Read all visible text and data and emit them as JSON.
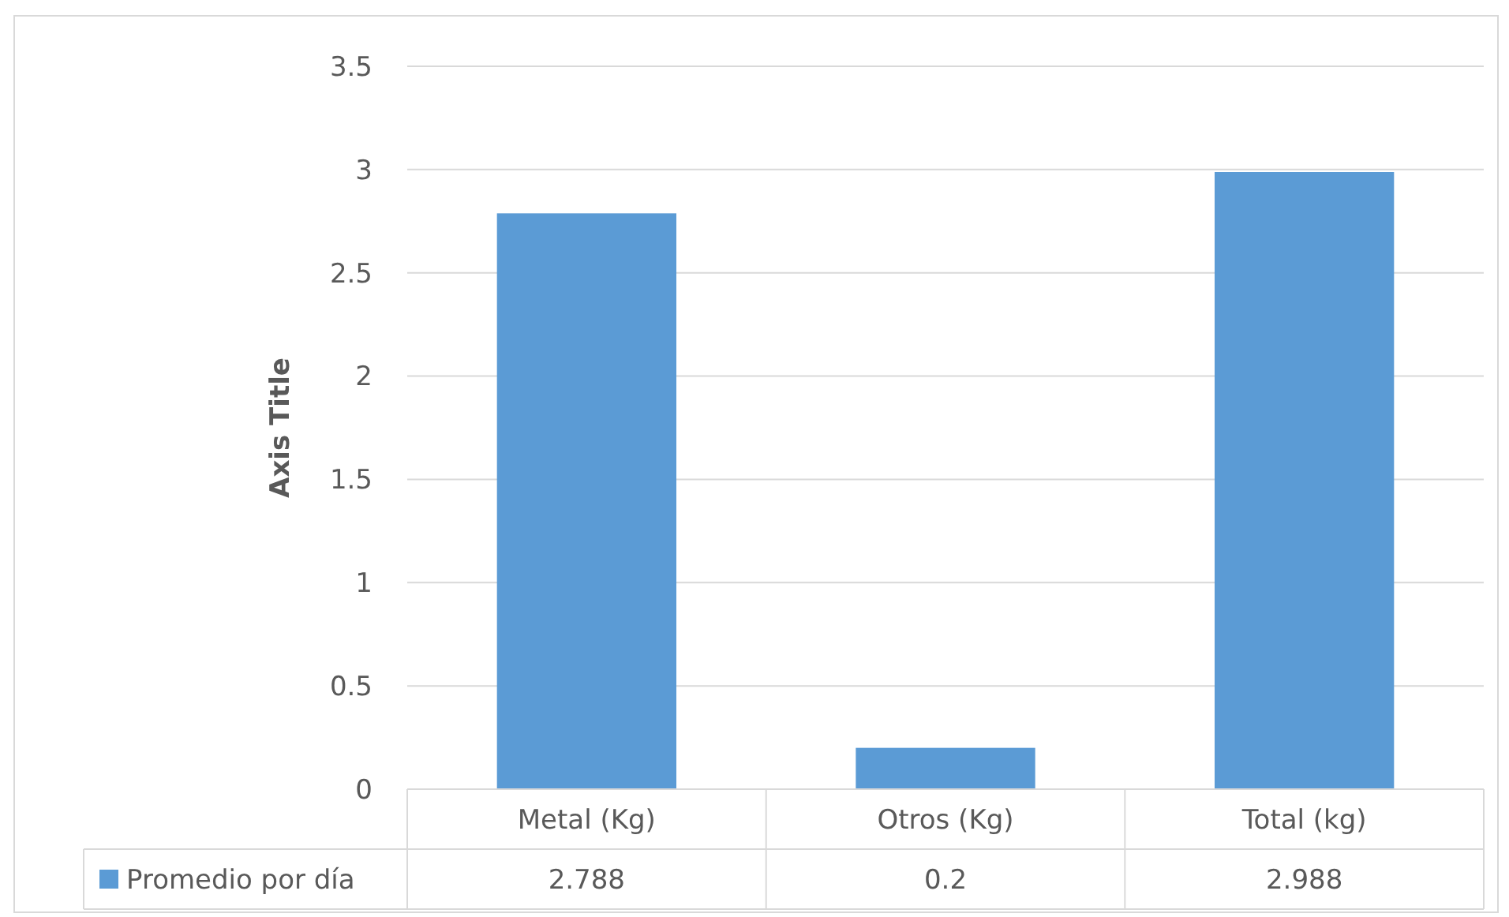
{
  "chart_data": {
    "type": "bar",
    "ylabel": "Axis Title",
    "categories": [
      "Metal (Kg)",
      "Otros (Kg)",
      "Total (kg)"
    ],
    "series": [
      {
        "name": "Promedio por día",
        "color": "#5b9bd5",
        "values": [
          2.788,
          0.2,
          2.988
        ]
      }
    ],
    "ylim": [
      0,
      3.5
    ],
    "yticks": [
      0,
      0.5,
      1,
      1.5,
      2,
      2.5,
      3,
      3.5
    ],
    "grid": "y",
    "data_labels": true,
    "legend": "bottom"
  }
}
